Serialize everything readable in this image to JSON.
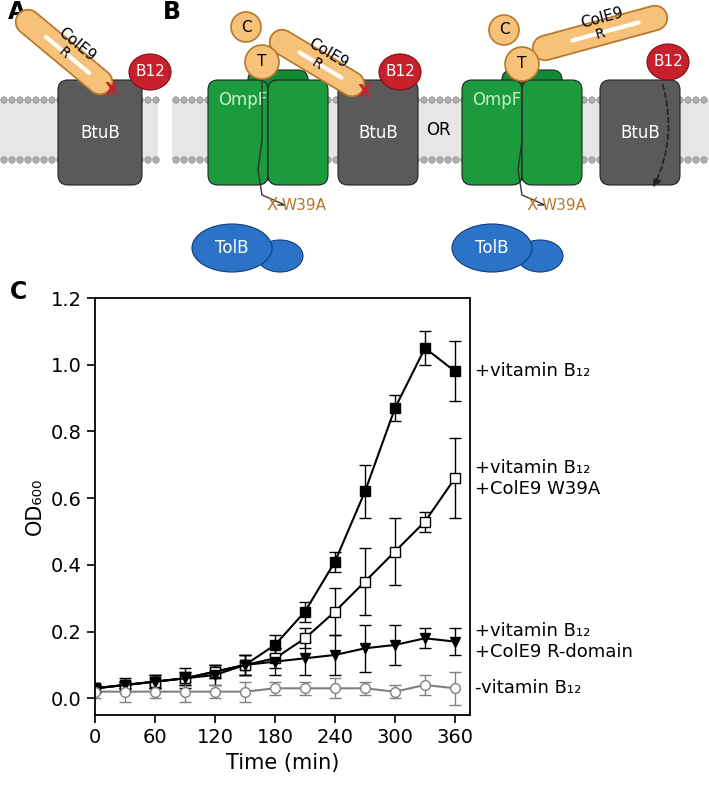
{
  "chart_data": {
    "type": "line",
    "x_label": "Time (min)",
    "y_label": "OD₆₀₀",
    "x": [
      0,
      30,
      60,
      90,
      120,
      150,
      180,
      210,
      240,
      270,
      300,
      330,
      360
    ],
    "xlim": [
      0,
      375
    ],
    "xticks": [
      0,
      60,
      120,
      180,
      240,
      300,
      360
    ],
    "ylim": [
      -0.05,
      1.2
    ],
    "yticks": [
      {
        "value": 0,
        "label": "0.0"
      },
      0.2,
      0.4,
      0.6,
      0.8,
      {
        "value": 1,
        "label": "1.0"
      },
      1.2
    ],
    "series": [
      {
        "name": "+vitamin B₁₂",
        "color": "#000000",
        "marker": "square",
        "line_style": "solid",
        "values": [
          0.03,
          0.04,
          0.05,
          0.06,
          0.08,
          0.1,
          0.16,
          0.26,
          0.41,
          0.62,
          0.87,
          1.05,
          0.98
        ],
        "errors": [
          0.01,
          0.01,
          0.02,
          0.02,
          0.02,
          0.03,
          0.03,
          0.03,
          0.03,
          0.08,
          0.04,
          0.05,
          0.09
        ]
      },
      {
        "name": "+vitamin B₁₂\n+ColE9 W39A",
        "color": "#000000",
        "marker": "open square",
        "line_style": "solid",
        "values": [
          0.03,
          0.04,
          0.05,
          0.06,
          0.08,
          0.1,
          0.12,
          0.18,
          0.26,
          0.35,
          0.44,
          0.53,
          0.66
        ],
        "errors": [
          0.01,
          0.01,
          0.02,
          0.02,
          0.02,
          0.03,
          0.03,
          0.03,
          0.07,
          0.1,
          0.1,
          0.03,
          0.12
        ]
      },
      {
        "name": "+vitamin B₁₂\n+ColE9 R-domain",
        "color": "#000000",
        "marker": "triangle_down",
        "line_style": "solid",
        "values": [
          0.03,
          0.04,
          0.05,
          0.06,
          0.07,
          0.1,
          0.11,
          0.12,
          0.13,
          0.15,
          0.16,
          0.18,
          0.17
        ],
        "errors": [
          0.01,
          0.02,
          0.02,
          0.03,
          0.03,
          0.03,
          0.04,
          0.05,
          0.06,
          0.07,
          0.06,
          0.03,
          0.04
        ]
      },
      {
        "name": "-vitamin B₁₂",
        "color": "#808080",
        "marker": "open circle",
        "line_style": "solid",
        "values": [
          0.02,
          0.02,
          0.02,
          0.02,
          0.02,
          0.02,
          0.03,
          0.03,
          0.03,
          0.03,
          0.02,
          0.04,
          0.03
        ],
        "errors": [
          0.02,
          0.03,
          0.02,
          0.03,
          0.02,
          0.03,
          0.02,
          0.02,
          0.03,
          0.02,
          0.02,
          0.03,
          0.05
        ]
      }
    ]
  },
  "diagram": {
    "panel_labels": [
      "A",
      "B",
      "C"
    ],
    "colicin": "ColE9",
    "receptor_domain": "R",
    "translocation_domain": "T",
    "cytotoxic_domain": "C",
    "vitamin": "B12",
    "receptor": "BtuB",
    "porin": "OmpF",
    "periplasmic_protein": "TolB",
    "mutation": "W39A",
    "block_mark": "X",
    "separator": "OR"
  }
}
